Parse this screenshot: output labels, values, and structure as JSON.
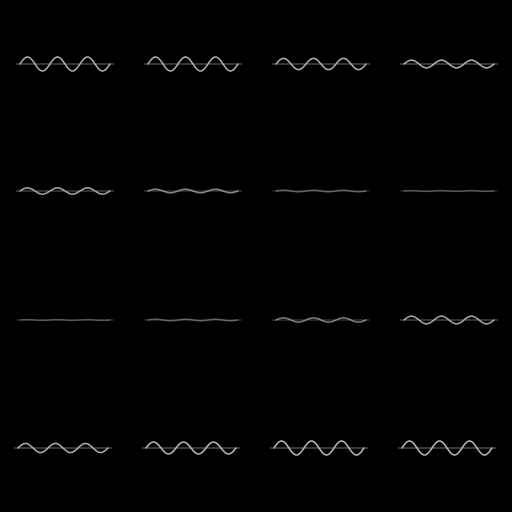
{
  "background_color": "#000000",
  "axis_color": "#8a8a8a",
  "wave_color": "#c8c8c8",
  "grid": {
    "rows": 4,
    "cols": 4
  },
  "waves": [
    {
      "amplitude": 1.0,
      "cycles": 3,
      "brightness": 0.85
    },
    {
      "amplitude": 1.0,
      "cycles": 3,
      "brightness": 0.85
    },
    {
      "amplitude": 0.8,
      "cycles": 3,
      "brightness": 0.85
    },
    {
      "amplitude": 0.55,
      "cycles": 3,
      "brightness": 0.85
    },
    {
      "amplitude": 0.45,
      "cycles": 3,
      "brightness": 0.8
    },
    {
      "amplitude": 0.25,
      "cycles": 3,
      "brightness": 0.65
    },
    {
      "amplitude": 0.1,
      "cycles": 3,
      "brightness": 0.45
    },
    {
      "amplitude": 0.05,
      "cycles": 3,
      "brightness": 0.35
    },
    {
      "amplitude": 0.05,
      "cycles": 3,
      "brightness": 0.35
    },
    {
      "amplitude": 0.1,
      "cycles": 3,
      "brightness": 0.45
    },
    {
      "amplitude": 0.3,
      "cycles": 3,
      "brightness": 0.6
    },
    {
      "amplitude": 0.55,
      "cycles": 3,
      "brightness": 0.8
    },
    {
      "amplitude": 0.65,
      "cycles": 3,
      "brightness": 0.85
    },
    {
      "amplitude": 0.85,
      "cycles": 3,
      "brightness": 0.9
    },
    {
      "amplitude": 1.0,
      "cycles": 3,
      "brightness": 0.9
    },
    {
      "amplitude": 1.0,
      "cycles": 3,
      "brightness": 0.9
    }
  ]
}
